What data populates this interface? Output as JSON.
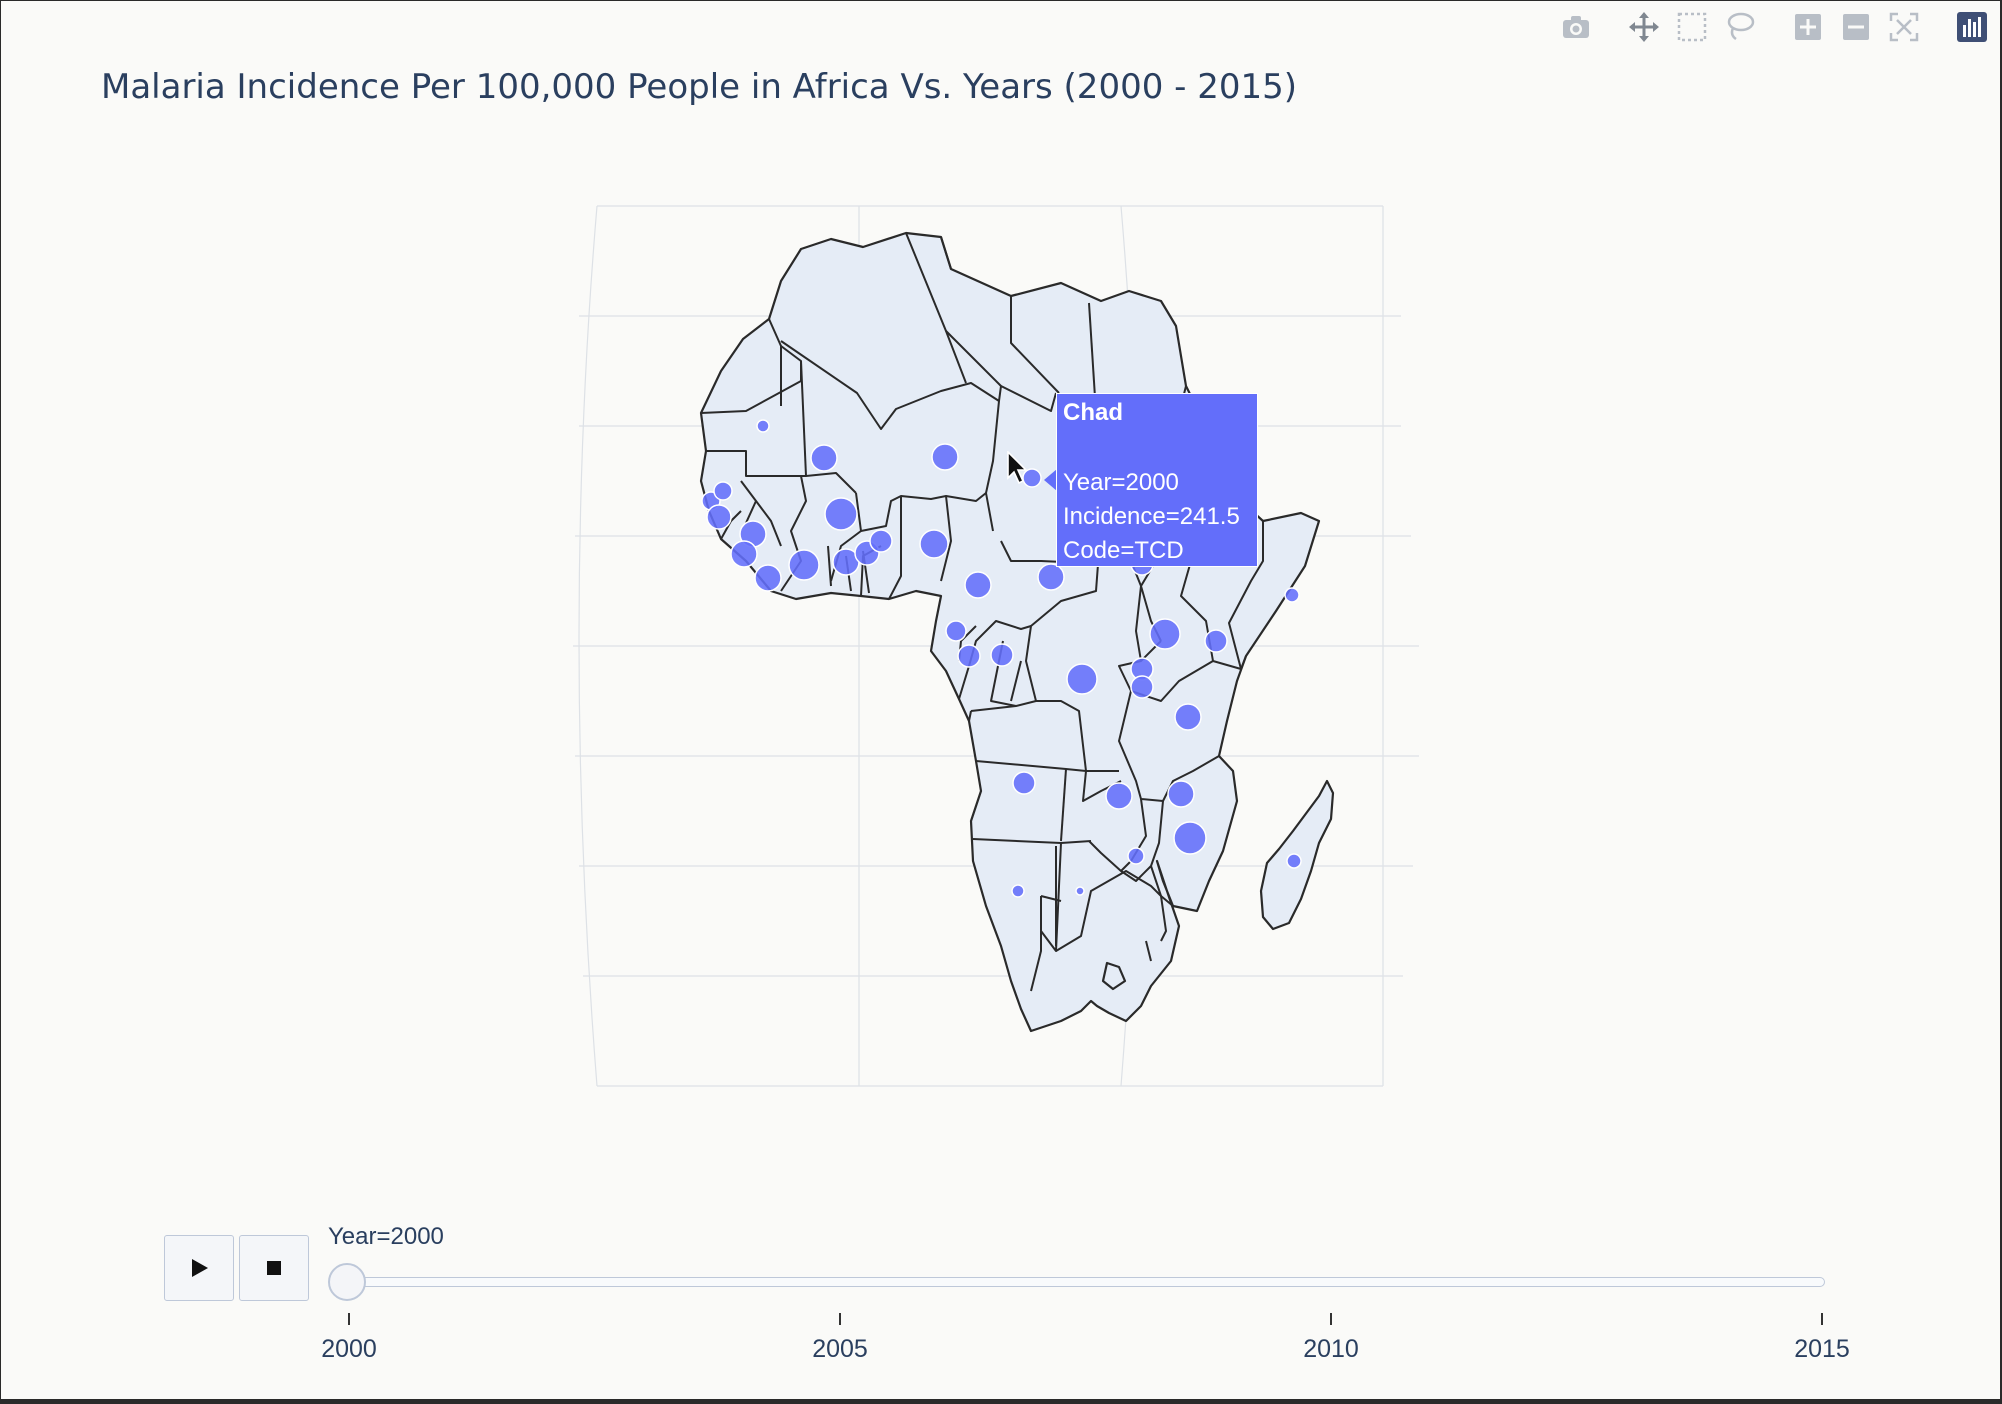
{
  "title": "Malaria Incidence Per 100,000 People in Africa Vs. Years (2000 - 2015)",
  "modebar": [
    {
      "name": "camera-icon"
    },
    {
      "name": "pan-icon"
    },
    {
      "name": "box-select-icon"
    },
    {
      "name": "lasso-select-icon"
    },
    {
      "name": "zoom-in-icon"
    },
    {
      "name": "zoom-out-icon"
    },
    {
      "name": "reset-view-icon"
    },
    {
      "name": "plotly-logo-icon"
    }
  ],
  "map": {
    "scope": "africa",
    "land_color": "#e5ecf6",
    "border_color": "#2a2a2a",
    "marker_color": "#636efa"
  },
  "hover": {
    "title": "Chad",
    "year_line": "Year=2000",
    "incidence_line": "Incidence=241.5",
    "code_line": "Code=TCD"
  },
  "slider": {
    "current_label": "Year=2000",
    "ticks": [
      "2000",
      "2005",
      "2010",
      "2015"
    ],
    "value_fraction": 0
  },
  "controls": {
    "play_icon": "play-icon",
    "stop_icon": "stop-icon"
  }
}
